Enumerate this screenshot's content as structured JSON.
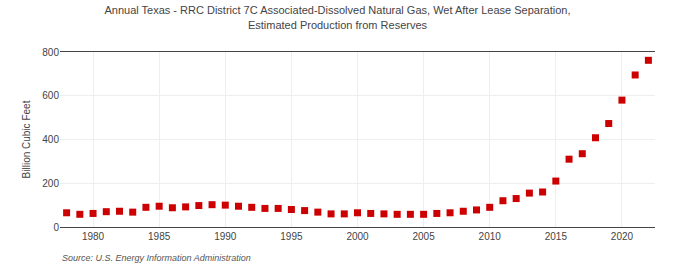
{
  "chart_data": {
    "type": "scatter",
    "title": "Annual Texas - RRC District 7C Associated-Dissolved Natural Gas, Wet After Lease Separation,\nEstimated Production from Reserves",
    "ylabel": "Billion Cubic Feet",
    "annotations": [
      "Source: U.S. Energy Information Administration"
    ],
    "x": [
      1978,
      1979,
      1980,
      1981,
      1982,
      1983,
      1984,
      1985,
      1986,
      1987,
      1988,
      1989,
      1990,
      1991,
      1992,
      1993,
      1994,
      1995,
      1996,
      1997,
      1998,
      1999,
      2000,
      2001,
      2002,
      2003,
      2004,
      2005,
      2006,
      2007,
      2008,
      2009,
      2010,
      2011,
      2012,
      2013,
      2014,
      2015,
      2016,
      2017,
      2018,
      2019,
      2020,
      2021,
      2022
    ],
    "values": [
      65,
      58,
      62,
      70,
      72,
      68,
      90,
      95,
      88,
      92,
      98,
      102,
      100,
      95,
      90,
      85,
      85,
      80,
      75,
      68,
      60,
      60,
      65,
      62,
      60,
      58,
      58,
      58,
      62,
      65,
      72,
      78,
      90,
      120,
      130,
      155,
      160,
      210,
      310,
      335,
      408,
      473,
      580,
      695,
      762
    ],
    "color": "#cc0000",
    "marker": "square",
    "xlim": [
      1977.5,
      2022.5
    ],
    "xticks": [
      1980,
      1985,
      1990,
      1995,
      2000,
      2005,
      2010,
      2015,
      2020
    ],
    "ylim": [
      0,
      800
    ],
    "yticks": [
      0,
      200,
      400,
      600,
      800
    ],
    "grid": true
  }
}
